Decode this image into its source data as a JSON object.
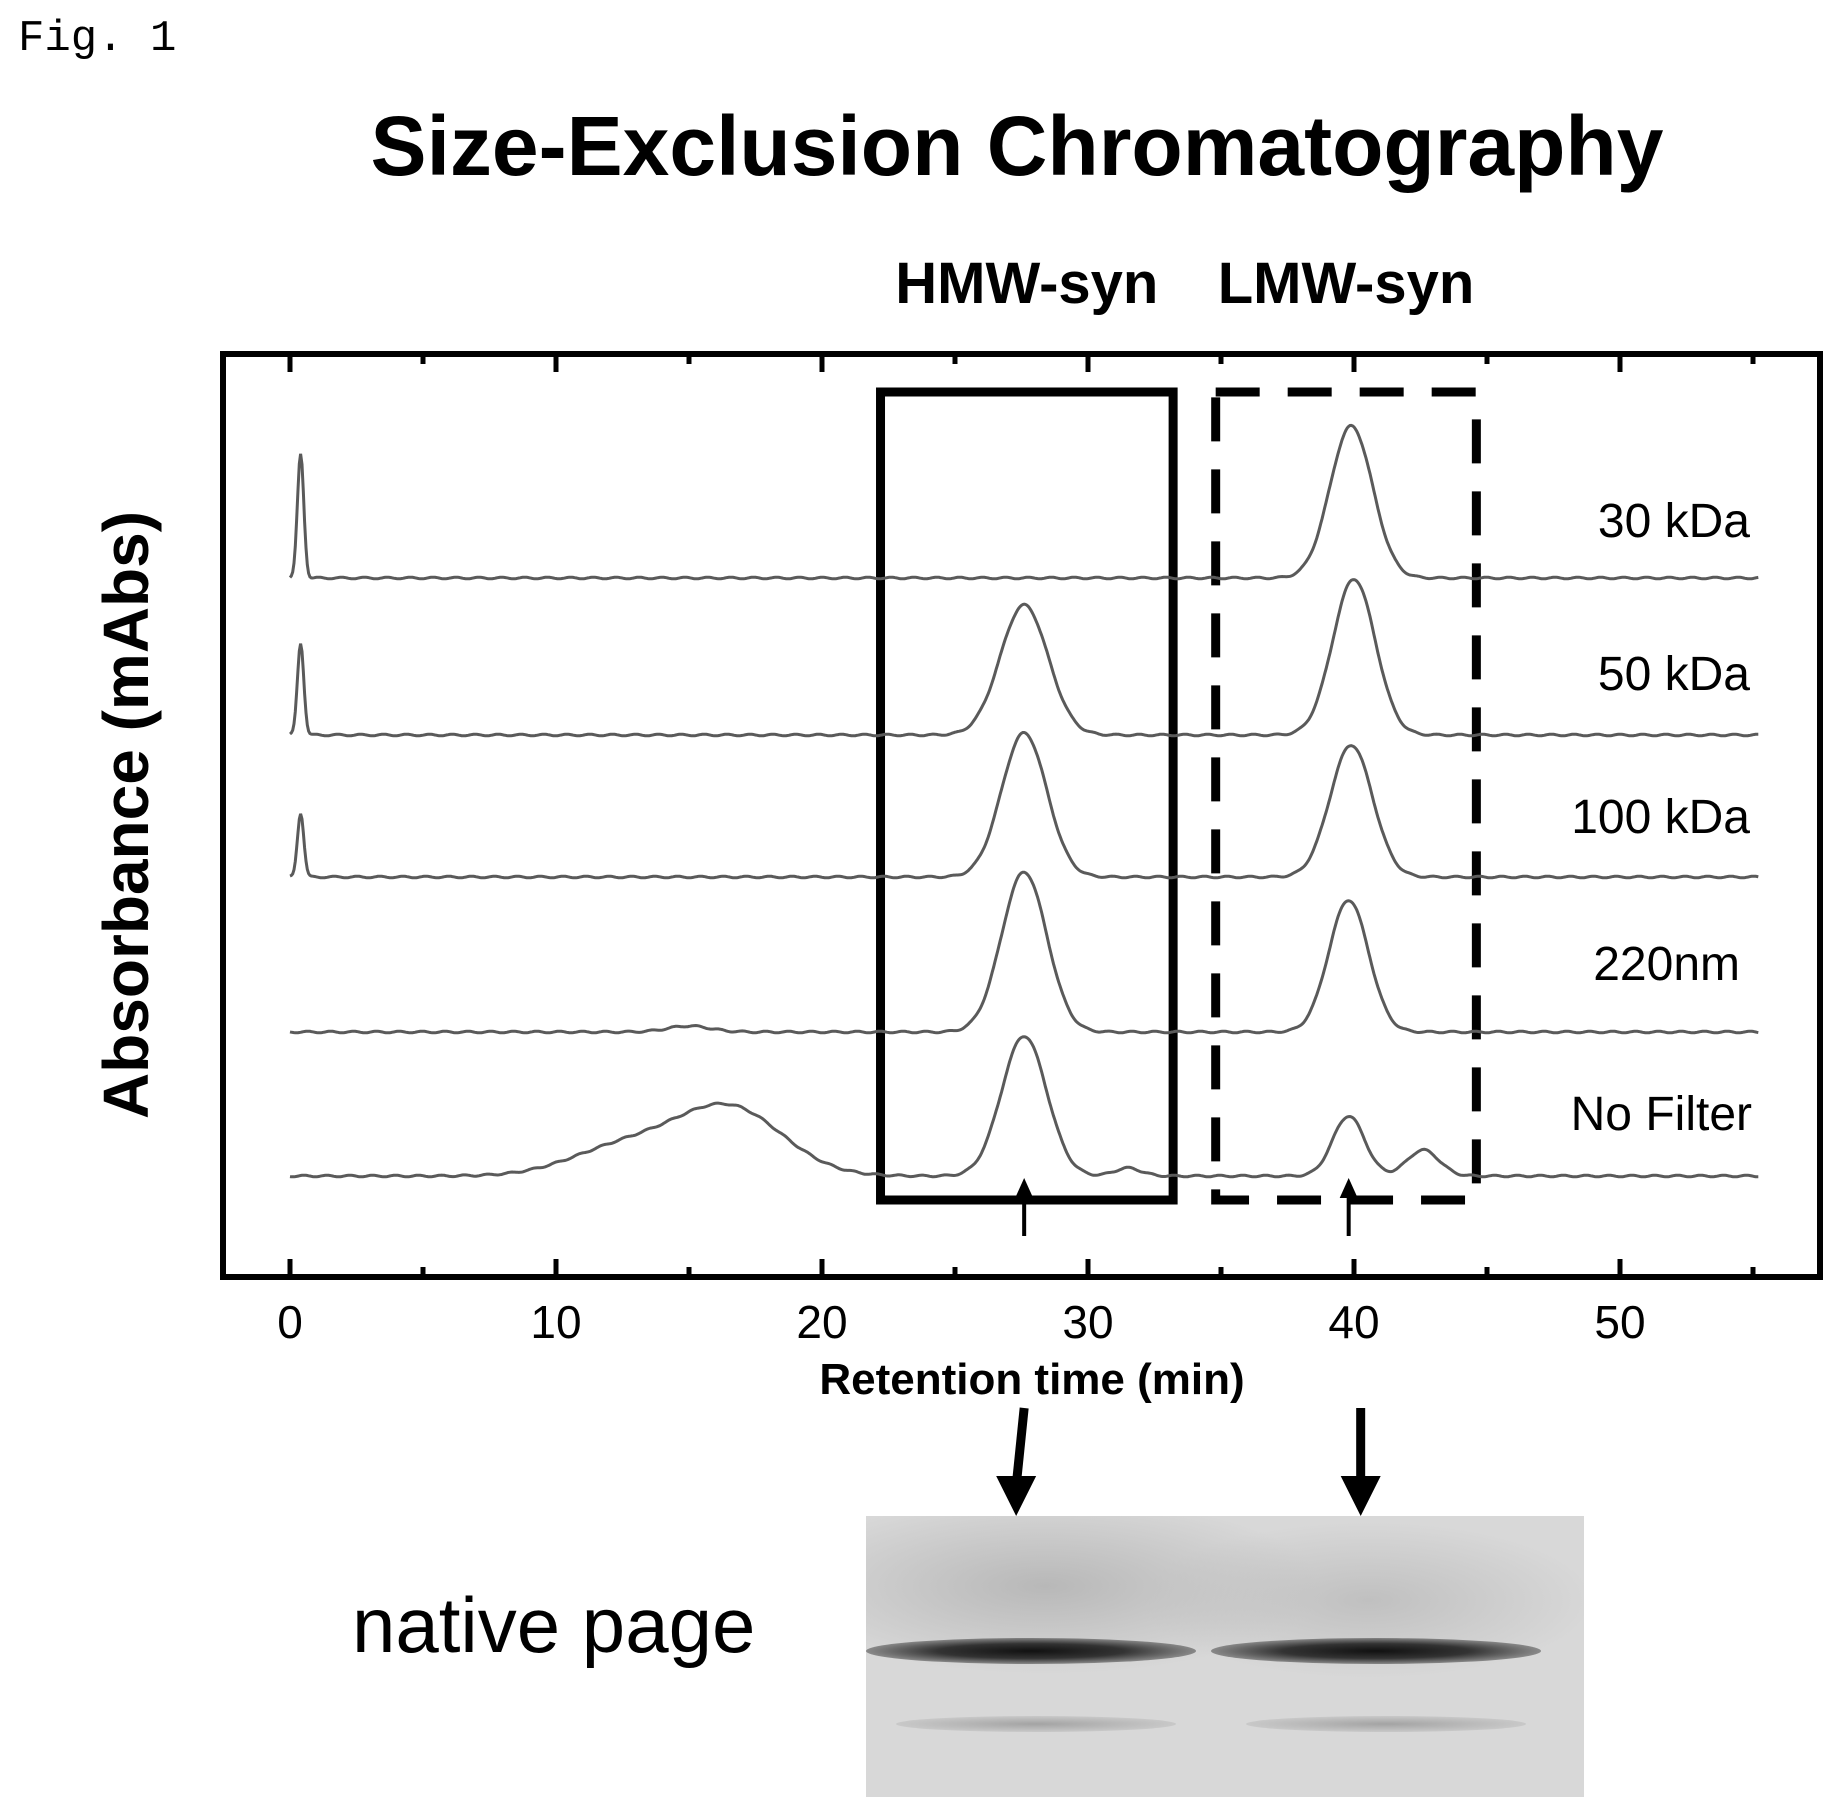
{
  "figure_label": "Fig. 1",
  "native_label": "native page",
  "colors": {
    "trace": "#5a5a5a",
    "axis": "#000000",
    "gel_band": "#111111"
  },
  "chart_data": {
    "type": "line",
    "title": "Size-Exclusion Chromatography",
    "xlabel": "Retention time (min)",
    "ylabel": "Absorbance (mAbs)",
    "xlim": [
      -2.5,
      57
    ],
    "xticks": [
      0,
      10,
      20,
      30,
      40,
      50
    ],
    "y_ticks_labeled": false,
    "legend": "inline-right",
    "grid": false,
    "regions": [
      {
        "label": "HMW-syn",
        "x": [
          22.2,
          33.2
        ],
        "style": "solid"
      },
      {
        "label": "LMW-syn",
        "x": [
          34.8,
          44.6
        ],
        "style": "dashed"
      }
    ],
    "markers": [
      27.6,
      39.8
    ],
    "series": [
      {
        "name": "30 kDa",
        "peaks": [
          [
            0.4,
            0.62,
            0.12
          ],
          [
            39.9,
            0.76,
            0.8
          ]
        ]
      },
      {
        "name": "50 kDa",
        "peaks": [
          [
            0.4,
            0.46,
            0.12
          ],
          [
            27.6,
            0.65,
            0.9
          ],
          [
            40.0,
            0.78,
            0.8
          ]
        ]
      },
      {
        "name": "100 kDa",
        "peaks": [
          [
            0.4,
            0.32,
            0.12
          ],
          [
            27.6,
            0.72,
            0.85
          ],
          [
            39.9,
            0.66,
            0.8
          ]
        ]
      },
      {
        "name": "220nm",
        "peaks": [
          [
            15.0,
            0.03,
            0.8
          ],
          [
            27.6,
            0.8,
            0.85
          ],
          [
            39.8,
            0.66,
            0.75
          ]
        ]
      },
      {
        "name": "No Filter",
        "peaks": [
          [
            12.5,
            0.14,
            2.0
          ],
          [
            16.5,
            0.34,
            2.0
          ],
          [
            27.6,
            0.7,
            0.85
          ],
          [
            31.5,
            0.04,
            0.5
          ],
          [
            39.8,
            0.3,
            0.6
          ],
          [
            42.6,
            0.13,
            0.6
          ]
        ]
      }
    ]
  }
}
